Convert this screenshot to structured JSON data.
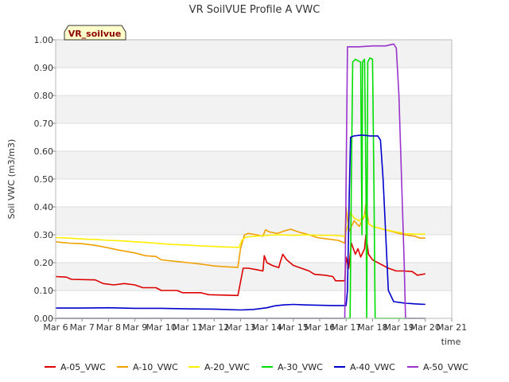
{
  "chart_data": {
    "type": "line",
    "title": "VR SoilVUE Profile A VWC",
    "badge": "VR_soilvue",
    "xlabel": "time",
    "ylabel": "Soil VWC (m3/m3)",
    "ylim": [
      0,
      1.0
    ],
    "xlim": [
      6,
      21
    ],
    "y_ticks": [
      "0.00",
      "0.10",
      "0.20",
      "0.30",
      "0.40",
      "0.50",
      "0.60",
      "0.70",
      "0.80",
      "0.90",
      "1.00"
    ],
    "x_ticks": [
      {
        "x": 6,
        "label": "Mar 6"
      },
      {
        "x": 7,
        "label": "Mar 7"
      },
      {
        "x": 8,
        "label": "Mar 8"
      },
      {
        "x": 9,
        "label": "Mar 9"
      },
      {
        "x": 10,
        "label": "Mar 10"
      },
      {
        "x": 11,
        "label": "Mar 11"
      },
      {
        "x": 12,
        "label": "Mar 12"
      },
      {
        "x": 13,
        "label": "Mar 13"
      },
      {
        "x": 14,
        "label": "Mar 14"
      },
      {
        "x": 15,
        "label": "Mar 15"
      },
      {
        "x": 16,
        "label": "Mar 16"
      },
      {
        "x": 17,
        "label": "Mar 17"
      },
      {
        "x": 18,
        "label": "Mar 18"
      },
      {
        "x": 19,
        "label": "Mar 19"
      },
      {
        "x": 20,
        "label": "Mar 20"
      },
      {
        "x": 21,
        "label": "Mar 21"
      }
    ],
    "grid": "horizontal bands",
    "legend_position": "bottom",
    "series": [
      {
        "name": "A-05_VWC",
        "color": "#dd0000",
        "points": [
          [
            6.0,
            0.15
          ],
          [
            6.4,
            0.148
          ],
          [
            6.6,
            0.14
          ],
          [
            7.5,
            0.138
          ],
          [
            7.8,
            0.125
          ],
          [
            8.2,
            0.12
          ],
          [
            8.6,
            0.125
          ],
          [
            9.0,
            0.12
          ],
          [
            9.3,
            0.11
          ],
          [
            9.8,
            0.11
          ],
          [
            10.0,
            0.1
          ],
          [
            10.6,
            0.1
          ],
          [
            10.8,
            0.092
          ],
          [
            11.5,
            0.092
          ],
          [
            11.8,
            0.085
          ],
          [
            12.5,
            0.083
          ],
          [
            12.9,
            0.082
          ],
          [
            13.0,
            0.13
          ],
          [
            13.1,
            0.18
          ],
          [
            13.3,
            0.18
          ],
          [
            13.6,
            0.175
          ],
          [
            13.85,
            0.17
          ],
          [
            13.9,
            0.225
          ],
          [
            14.0,
            0.2
          ],
          [
            14.2,
            0.19
          ],
          [
            14.45,
            0.182
          ],
          [
            14.5,
            0.2
          ],
          [
            14.6,
            0.23
          ],
          [
            14.75,
            0.21
          ],
          [
            15.0,
            0.19
          ],
          [
            15.3,
            0.18
          ],
          [
            15.6,
            0.17
          ],
          [
            15.8,
            0.158
          ],
          [
            16.2,
            0.155
          ],
          [
            16.5,
            0.15
          ],
          [
            16.6,
            0.135
          ],
          [
            16.95,
            0.135
          ],
          [
            17.0,
            0.22
          ],
          [
            17.1,
            0.18
          ],
          [
            17.2,
            0.27
          ],
          [
            17.35,
            0.23
          ],
          [
            17.45,
            0.25
          ],
          [
            17.55,
            0.22
          ],
          [
            17.7,
            0.25
          ],
          [
            17.75,
            0.3
          ],
          [
            17.85,
            0.23
          ],
          [
            18.0,
            0.21
          ],
          [
            18.3,
            0.195
          ],
          [
            18.6,
            0.18
          ],
          [
            18.9,
            0.17
          ],
          [
            19.2,
            0.17
          ],
          [
            19.5,
            0.168
          ],
          [
            19.7,
            0.155
          ],
          [
            19.9,
            0.158
          ],
          [
            20.0,
            0.16
          ]
        ]
      },
      {
        "name": "A-10_VWC",
        "color": "#f0a000",
        "points": [
          [
            6.0,
            0.275
          ],
          [
            6.5,
            0.27
          ],
          [
            7.0,
            0.268
          ],
          [
            7.5,
            0.262
          ],
          [
            7.9,
            0.255
          ],
          [
            8.4,
            0.245
          ],
          [
            9.0,
            0.235
          ],
          [
            9.4,
            0.225
          ],
          [
            9.8,
            0.222
          ],
          [
            10.0,
            0.21
          ],
          [
            10.5,
            0.205
          ],
          [
            11.0,
            0.2
          ],
          [
            11.5,
            0.195
          ],
          [
            12.0,
            0.188
          ],
          [
            12.5,
            0.185
          ],
          [
            12.9,
            0.183
          ],
          [
            13.0,
            0.25
          ],
          [
            13.15,
            0.3
          ],
          [
            13.3,
            0.305
          ],
          [
            13.6,
            0.3
          ],
          [
            13.85,
            0.295
          ],
          [
            13.95,
            0.318
          ],
          [
            14.1,
            0.31
          ],
          [
            14.4,
            0.305
          ],
          [
            14.7,
            0.315
          ],
          [
            14.9,
            0.32
          ],
          [
            15.2,
            0.31
          ],
          [
            15.6,
            0.3
          ],
          [
            15.9,
            0.29
          ],
          [
            16.3,
            0.285
          ],
          [
            16.7,
            0.28
          ],
          [
            16.95,
            0.27
          ],
          [
            17.0,
            0.4
          ],
          [
            17.1,
            0.31
          ],
          [
            17.3,
            0.35
          ],
          [
            17.5,
            0.33
          ],
          [
            17.7,
            0.37
          ],
          [
            17.75,
            0.41
          ],
          [
            17.85,
            0.34
          ],
          [
            18.0,
            0.33
          ],
          [
            18.4,
            0.32
          ],
          [
            18.8,
            0.31
          ],
          [
            19.2,
            0.3
          ],
          [
            19.6,
            0.295
          ],
          [
            19.8,
            0.288
          ],
          [
            20.0,
            0.288
          ]
        ]
      },
      {
        "name": "A-20_VWC",
        "color": "#ffee00",
        "points": [
          [
            6.0,
            0.29
          ],
          [
            6.5,
            0.288
          ],
          [
            7.0,
            0.285
          ],
          [
            7.5,
            0.283
          ],
          [
            8.0,
            0.28
          ],
          [
            8.5,
            0.278
          ],
          [
            9.0,
            0.275
          ],
          [
            9.5,
            0.272
          ],
          [
            10.0,
            0.268
          ],
          [
            10.5,
            0.265
          ],
          [
            11.0,
            0.263
          ],
          [
            11.5,
            0.26
          ],
          [
            12.0,
            0.258
          ],
          [
            12.5,
            0.256
          ],
          [
            12.95,
            0.255
          ],
          [
            13.05,
            0.28
          ],
          [
            13.2,
            0.292
          ],
          [
            13.6,
            0.295
          ],
          [
            14.0,
            0.298
          ],
          [
            14.5,
            0.3
          ],
          [
            15.0,
            0.298
          ],
          [
            15.5,
            0.3
          ],
          [
            16.0,
            0.298
          ],
          [
            16.5,
            0.298
          ],
          [
            16.95,
            0.295
          ],
          [
            17.05,
            0.33
          ],
          [
            17.15,
            0.38
          ],
          [
            17.3,
            0.36
          ],
          [
            17.5,
            0.35
          ],
          [
            17.7,
            0.37
          ],
          [
            17.85,
            0.34
          ],
          [
            18.0,
            0.33
          ],
          [
            18.4,
            0.32
          ],
          [
            18.8,
            0.312
          ],
          [
            19.2,
            0.305
          ],
          [
            19.6,
            0.302
          ],
          [
            20.0,
            0.302
          ]
        ]
      },
      {
        "name": "A-30_VWC",
        "color": "#00dd00",
        "points": [
          [
            6.0,
            0.0
          ],
          [
            17.15,
            0.0
          ],
          [
            17.2,
            0.5
          ],
          [
            17.25,
            0.92
          ],
          [
            17.35,
            0.93
          ],
          [
            17.45,
            0.925
          ],
          [
            17.55,
            0.92
          ],
          [
            17.6,
            0.3
          ],
          [
            17.62,
            0.92
          ],
          [
            17.7,
            0.93
          ],
          [
            17.75,
            0.5
          ],
          [
            17.78,
            0.0
          ],
          [
            17.82,
            0.92
          ],
          [
            17.9,
            0.935
          ],
          [
            18.0,
            0.93
          ],
          [
            18.05,
            0.5
          ],
          [
            18.1,
            0.0
          ],
          [
            20.0,
            0.0
          ]
        ]
      },
      {
        "name": "A-40_VWC",
        "color": "#0000cc",
        "points": [
          [
            6.0,
            0.037
          ],
          [
            7.0,
            0.037
          ],
          [
            8.0,
            0.038
          ],
          [
            9.0,
            0.036
          ],
          [
            10.0,
            0.036
          ],
          [
            11.0,
            0.034
          ],
          [
            12.0,
            0.033
          ],
          [
            13.0,
            0.03
          ],
          [
            13.5,
            0.032
          ],
          [
            14.0,
            0.038
          ],
          [
            14.3,
            0.045
          ],
          [
            14.6,
            0.048
          ],
          [
            15.0,
            0.05
          ],
          [
            15.5,
            0.048
          ],
          [
            16.0,
            0.047
          ],
          [
            16.5,
            0.046
          ],
          [
            17.0,
            0.046
          ],
          [
            17.05,
            0.1
          ],
          [
            17.12,
            0.45
          ],
          [
            17.17,
            0.65
          ],
          [
            17.3,
            0.655
          ],
          [
            17.6,
            0.658
          ],
          [
            17.9,
            0.655
          ],
          [
            18.2,
            0.655
          ],
          [
            18.3,
            0.64
          ],
          [
            18.4,
            0.5
          ],
          [
            18.5,
            0.3
          ],
          [
            18.6,
            0.1
          ],
          [
            18.8,
            0.06
          ],
          [
            19.2,
            0.055
          ],
          [
            19.6,
            0.052
          ],
          [
            20.0,
            0.05
          ]
        ]
      },
      {
        "name": "A-50_VWC",
        "color": "#9933cc",
        "points": [
          [
            6.0,
            0.0
          ],
          [
            16.95,
            0.0
          ],
          [
            17.0,
            0.5
          ],
          [
            17.05,
            0.975
          ],
          [
            17.5,
            0.975
          ],
          [
            18.0,
            0.978
          ],
          [
            18.5,
            0.978
          ],
          [
            18.8,
            0.985
          ],
          [
            18.9,
            0.97
          ],
          [
            19.0,
            0.8
          ],
          [
            19.1,
            0.5
          ],
          [
            19.2,
            0.2
          ],
          [
            19.25,
            0.0
          ],
          [
            20.0,
            0.0
          ]
        ]
      }
    ]
  }
}
